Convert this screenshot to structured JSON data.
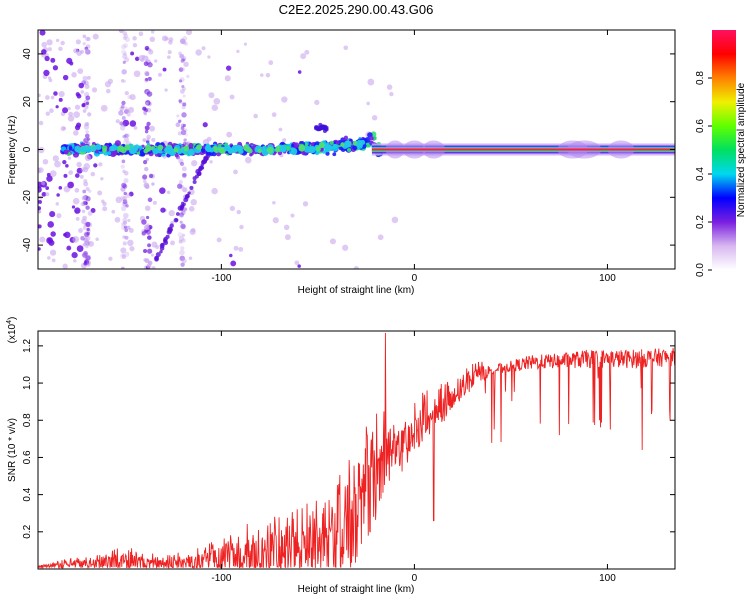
{
  "title": "C2E2.2025.290.00.43.G06",
  "chart_data": [
    {
      "type": "heatmap",
      "name": "spectrogram",
      "xlabel": "Height of straight line (km)",
      "ylabel": "Frequency (Hz)",
      "xlim": [
        -195,
        135
      ],
      "ylim": [
        -50,
        50
      ],
      "xticks": [
        -100,
        0,
        100
      ],
      "yticks": [
        -40,
        -20,
        0,
        20,
        40
      ],
      "colorbar": {
        "label": "Normalized spectral amplitude",
        "range": [
          0,
          1
        ],
        "ticks": [
          0.0,
          0.2,
          0.4,
          0.6,
          0.8
        ],
        "tick_labels": [
          "0.0",
          "0.2",
          "0.4",
          "0.6",
          "0.8"
        ],
        "colors": [
          "#ffffff",
          "#d8b8f0",
          "#7a1fe0",
          "#0000ff",
          "#00d8f0",
          "#00e060",
          "#60ff00",
          "#f0f000",
          "#ff8000",
          "#ff0000",
          "#ff1060"
        ]
      },
      "features": {
        "carrier_line_freq_hz": 0,
        "carrier_line_from_km": -22,
        "carrier_line_to_km": 135,
        "noisy_band_from_km": -195,
        "noisy_band_to_km": -20
      }
    },
    {
      "type": "line",
      "name": "snr",
      "xlabel": "Height of straight line (km)",
      "ylabel": "SNR (10 * v/v)",
      "multiplier_label": "(x10",
      "multiplier_exp": "4",
      "multiplier_close": ")",
      "xlim": [
        -195,
        135
      ],
      "ylim": [
        0,
        1.28
      ],
      "xticks": [
        -100,
        0,
        100
      ],
      "yticks": [
        0.2,
        0.4,
        0.6,
        0.8,
        1.0,
        1.2
      ],
      "ytick_labels": [
        "0.2",
        "0.4",
        "0.6",
        "0.8",
        "1.0",
        "1.2"
      ],
      "color": "#ee2222",
      "envelope": {
        "x": [
          -195,
          -170,
          -150,
          -130,
          -110,
          -90,
          -75,
          -60,
          -45,
          -35,
          -28,
          -22,
          -18,
          -14,
          -8,
          -3,
          0,
          5,
          10,
          15,
          20,
          25,
          30,
          35,
          40,
          50,
          60,
          75,
          90,
          110,
          135
        ],
        "base": [
          0.01,
          0.02,
          0.03,
          0.02,
          0.03,
          0.05,
          0.06,
          0.08,
          0.1,
          0.18,
          0.28,
          0.45,
          0.55,
          0.6,
          0.62,
          0.66,
          0.72,
          0.78,
          0.82,
          0.86,
          0.9,
          0.97,
          1.02,
          1.05,
          1.07,
          1.09,
          1.11,
          1.12,
          1.13,
          1.13,
          1.14
        ],
        "spread": [
          0.01,
          0.03,
          0.05,
          0.03,
          0.05,
          0.1,
          0.14,
          0.14,
          0.18,
          0.22,
          0.22,
          0.3,
          0.2,
          0.15,
          0.12,
          0.12,
          0.1,
          0.1,
          0.08,
          0.08,
          0.07,
          0.06,
          0.05,
          0.04,
          0.03,
          0.03,
          0.04,
          0.04,
          0.05,
          0.05,
          0.05
        ]
      },
      "peak": {
        "x": -15,
        "y": 1.27
      },
      "dips": [
        {
          "x": 10,
          "y": 0.26
        },
        {
          "x": 75,
          "y": 0.72
        },
        {
          "x": 80,
          "y": 0.78
        },
        {
          "x": 96,
          "y": 0.8
        },
        {
          "x": 118,
          "y": 0.64
        }
      ]
    }
  ]
}
